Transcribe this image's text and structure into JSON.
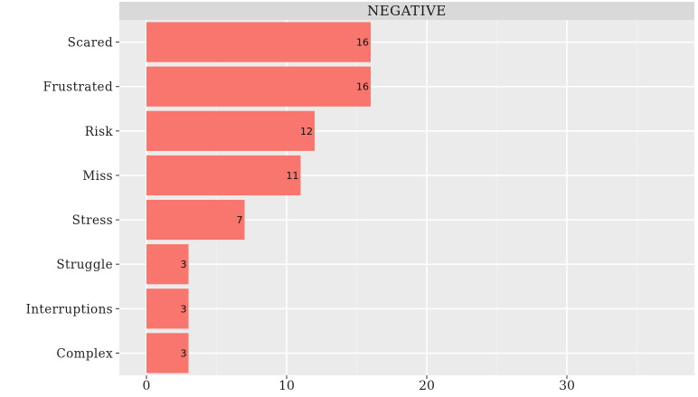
{
  "chart_data": {
    "type": "bar",
    "orientation": "horizontal",
    "facet_title": "NEGATIVE",
    "categories": [
      "Scared",
      "Frustrated",
      "Risk",
      "Miss",
      "Stress",
      "Struggle",
      "Interruptions",
      "Complex"
    ],
    "values": [
      16,
      16,
      12,
      11,
      7,
      3,
      3,
      3
    ],
    "xlim": [
      0,
      38
    ],
    "xticks": [
      0,
      10,
      20,
      30
    ],
    "grid": true,
    "legend": "none",
    "colors": {
      "bar": "#F8766D",
      "panel": "#EBEBEB",
      "strip": "#D9D9D9",
      "grid_major": "#FFFFFF",
      "grid_minor": "#F3F3F3"
    }
  }
}
